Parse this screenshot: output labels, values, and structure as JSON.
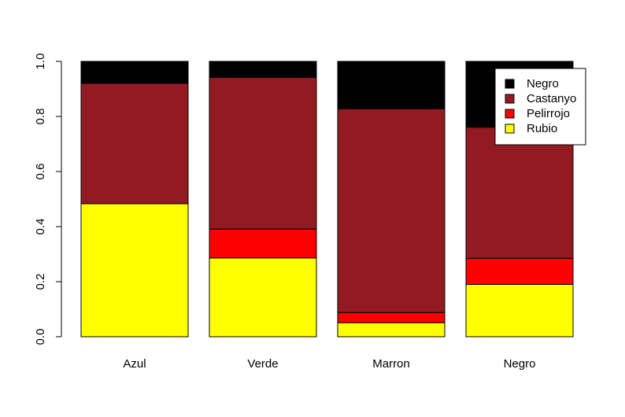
{
  "chart_data": {
    "type": "bar",
    "stacked": true,
    "categories": [
      "Azul",
      "Verde",
      "Marron",
      "Negro"
    ],
    "series": [
      {
        "name": "Rubio",
        "color": "#FFFF00",
        "values": [
          0.483,
          0.286,
          0.051,
          0.19
        ]
      },
      {
        "name": "Pelirrojo",
        "color": "#FF0000",
        "values": [
          0.0,
          0.105,
          0.037,
          0.095
        ]
      },
      {
        "name": "Castanyo",
        "color": "#931A20",
        "values": [
          0.437,
          0.551,
          0.74,
          0.476
        ]
      },
      {
        "name": "Negro",
        "color": "#000000",
        "values": [
          0.08,
          0.058,
          0.172,
          0.239
        ]
      }
    ],
    "legend_order": [
      "Negro",
      "Castanyo",
      "Pelirrojo",
      "Rubio"
    ],
    "title": "",
    "xlabel": "",
    "ylabel": "",
    "ylim": [
      0,
      1
    ],
    "yticks": [
      "0.0",
      "0.2",
      "0.4",
      "0.6",
      "0.8",
      "1.0"
    ],
    "grid": false,
    "legend_position": "top-right"
  }
}
